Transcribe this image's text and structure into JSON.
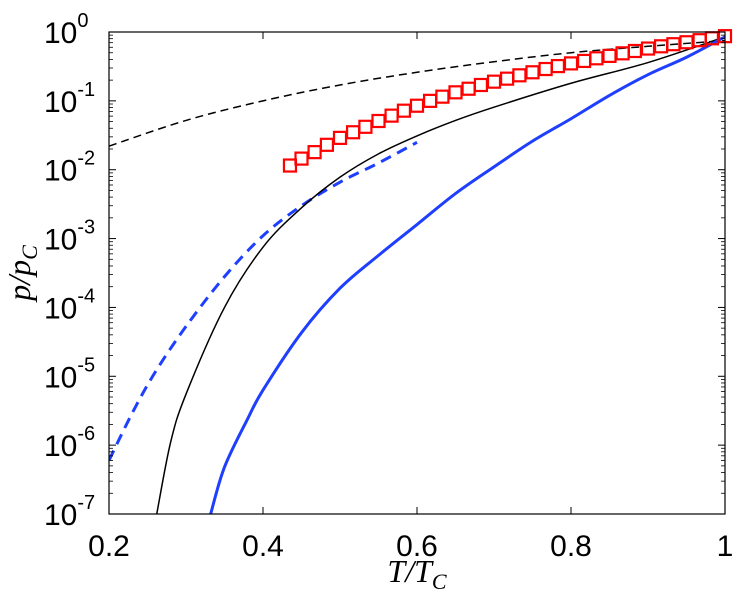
{
  "chart_data": {
    "type": "line",
    "xlabel": {
      "main": "T/T",
      "sub": "C"
    },
    "ylabel": {
      "main": "p/p",
      "sub": "C"
    },
    "xlim": [
      0.2,
      1.0
    ],
    "ylim": [
      1e-07,
      1
    ],
    "yscale": "log",
    "grid": false,
    "legend": "none",
    "x_ticks": [
      {
        "value": 0.2,
        "label": "0.2"
      },
      {
        "value": 0.4,
        "label": "0.4"
      },
      {
        "value": 0.6,
        "label": "0.6"
      },
      {
        "value": 0.8,
        "label": "0.8"
      },
      {
        "value": 1.0,
        "label": "1"
      }
    ],
    "y_ticks": [
      {
        "value": 1,
        "base": "10",
        "exp": "0"
      },
      {
        "value": 0.1,
        "base": "10",
        "exp": "-1"
      },
      {
        "value": 0.01,
        "base": "10",
        "exp": "-2"
      },
      {
        "value": 0.001,
        "base": "10",
        "exp": "-3"
      },
      {
        "value": 0.0001,
        "base": "10",
        "exp": "-4"
      },
      {
        "value": 1e-05,
        "base": "10",
        "exp": "-5"
      },
      {
        "value": 1e-06,
        "base": "10",
        "exp": "-6"
      },
      {
        "value": 1e-07,
        "base": "10",
        "exp": "-7"
      }
    ],
    "series": [
      {
        "key": "black-dashed",
        "color": "#000000",
        "style": "dashed",
        "width": 1.5,
        "x": [
          0.2,
          0.3,
          0.4,
          0.5,
          0.6,
          0.7,
          0.8,
          0.9,
          1.0
        ],
        "y": [
          0.022,
          0.052,
          0.1,
          0.17,
          0.26,
          0.37,
          0.5,
          0.62,
          0.75
        ]
      },
      {
        "key": "blue-dashed",
        "color": "#1f3fff",
        "style": "dashed",
        "width": 3,
        "x": [
          0.2,
          0.23,
          0.26,
          0.3,
          0.35,
          0.4,
          0.45,
          0.5,
          0.55,
          0.6
        ],
        "y": [
          6e-07,
          2.9e-06,
          1.15e-05,
          5.3e-05,
          0.00028,
          0.0011,
          0.003,
          0.0066,
          0.0125,
          0.025
        ]
      },
      {
        "key": "black-solid",
        "color": "#000000",
        "style": "solid",
        "width": 1.5,
        "x": [
          0.262,
          0.28,
          0.3,
          0.35,
          0.4,
          0.45,
          0.5,
          0.55,
          0.6,
          0.65,
          0.7,
          0.8,
          0.9,
          1.0
        ],
        "y": [
          1e-07,
          1.1e-06,
          5.5e-06,
          0.0001,
          0.00075,
          0.0028,
          0.0078,
          0.017,
          0.031,
          0.052,
          0.081,
          0.18,
          0.36,
          0.85
        ]
      },
      {
        "key": "blue-solid",
        "color": "#1f3fff",
        "style": "solid",
        "width": 3,
        "x": [
          0.332,
          0.35,
          0.38,
          0.4,
          0.45,
          0.5,
          0.55,
          0.6,
          0.65,
          0.7,
          0.75,
          0.8,
          0.85,
          0.9,
          0.95,
          1.0
        ],
        "y": [
          1e-07,
          4.8e-07,
          2.4e-06,
          6.3e-06,
          4.3e-05,
          0.00019,
          0.00057,
          0.0016,
          0.0045,
          0.011,
          0.026,
          0.055,
          0.12,
          0.24,
          0.43,
          0.85
        ]
      },
      {
        "key": "red-squares",
        "color": "#ff0000",
        "style": "markers",
        "marker": "square",
        "x": [
          0.435,
          0.45,
          0.467,
          0.483,
          0.5,
          0.517,
          0.533,
          0.55,
          0.567,
          0.583,
          0.6,
          0.617,
          0.633,
          0.65,
          0.667,
          0.683,
          0.7,
          0.717,
          0.733,
          0.75,
          0.767,
          0.783,
          0.8,
          0.817,
          0.833,
          0.85,
          0.867,
          0.883,
          0.9,
          0.917,
          0.933,
          0.95,
          0.967,
          0.983,
          1.0
        ],
        "y": [
          0.0115,
          0.0145,
          0.018,
          0.023,
          0.029,
          0.035,
          0.042,
          0.051,
          0.061,
          0.072,
          0.085,
          0.1,
          0.115,
          0.133,
          0.15,
          0.17,
          0.19,
          0.21,
          0.235,
          0.26,
          0.29,
          0.32,
          0.35,
          0.38,
          0.415,
          0.45,
          0.49,
          0.53,
          0.575,
          0.62,
          0.665,
          0.71,
          0.76,
          0.81,
          0.87
        ]
      }
    ]
  }
}
